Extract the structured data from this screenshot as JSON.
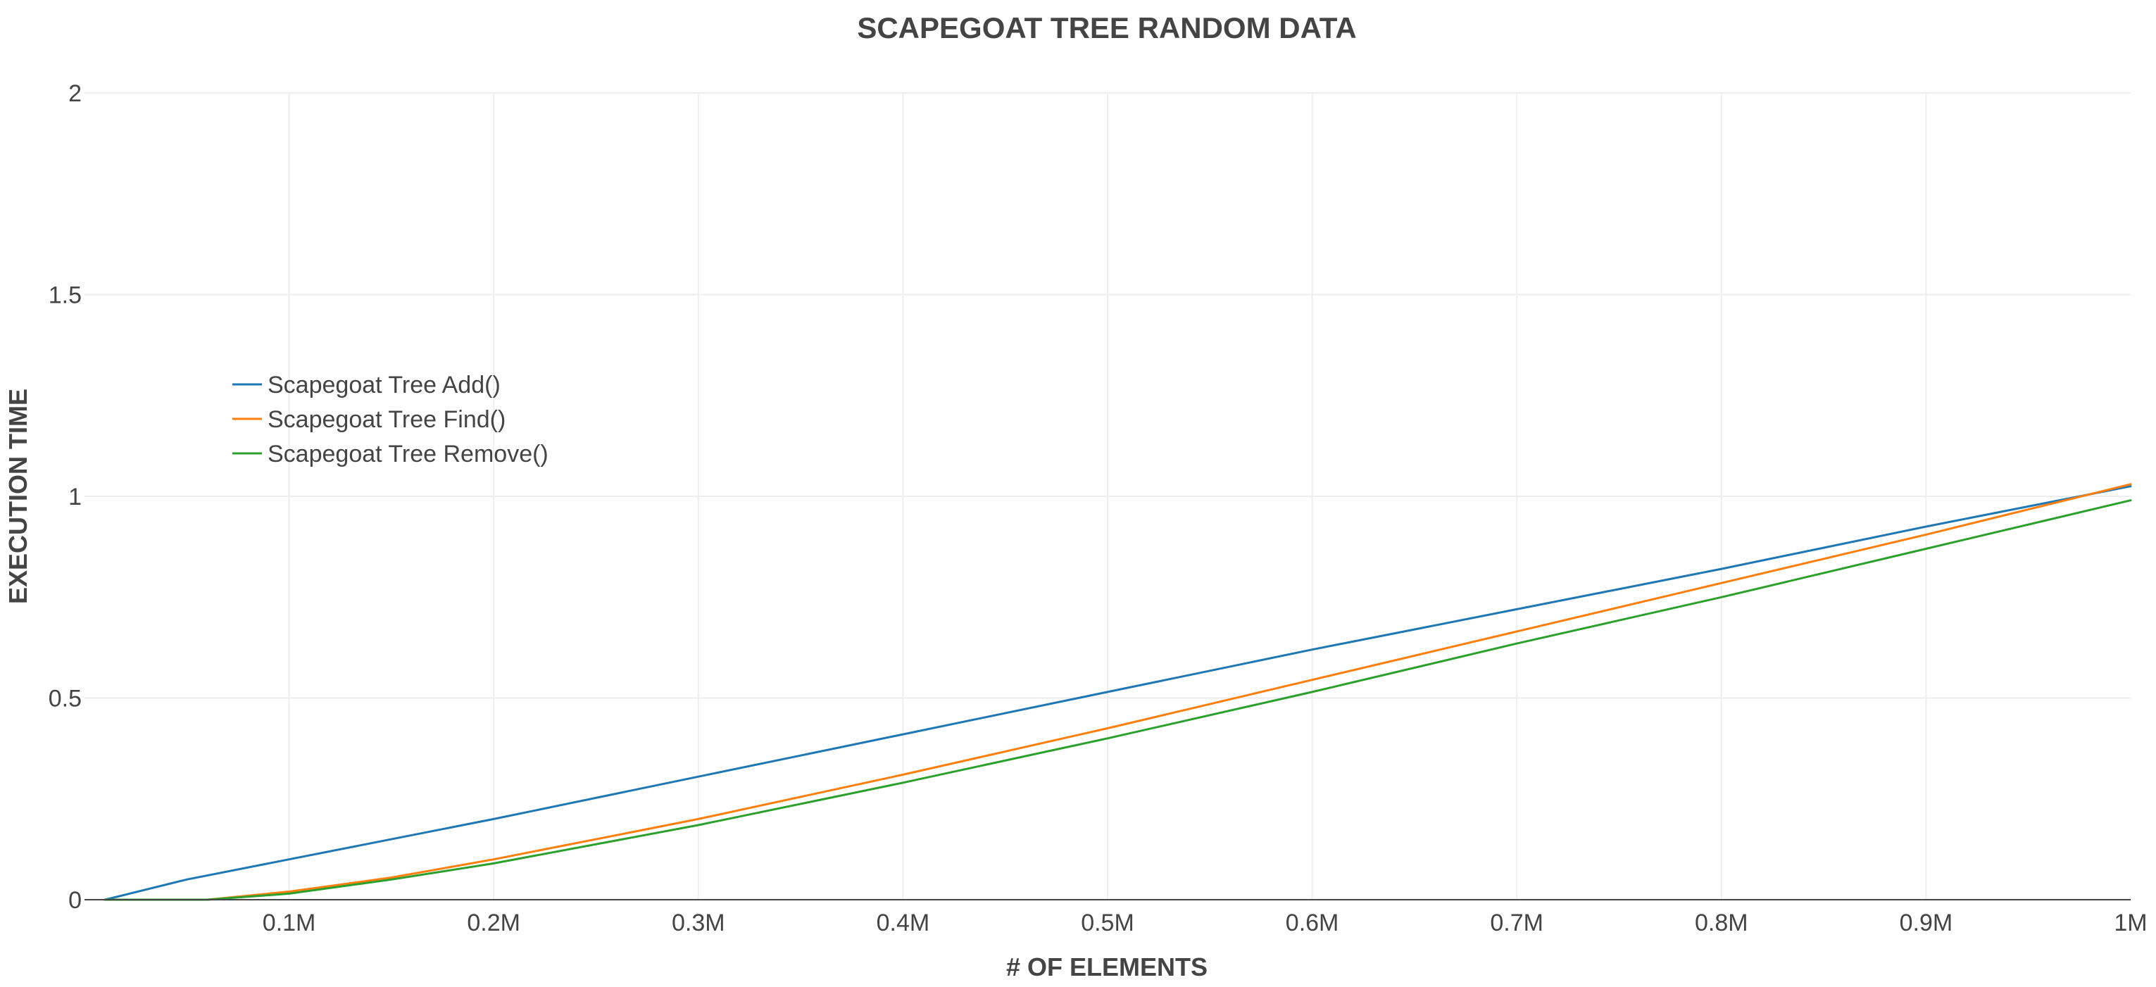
{
  "chart_data": {
    "type": "line",
    "title": "SCAPEGOAT TREE RANDOM DATA",
    "xlabel": "# OF ELEMENTS",
    "ylabel": "EXECUTION TIME",
    "xlim": [
      0,
      1000000
    ],
    "ylim": [
      0,
      2
    ],
    "x_ticks": [
      {
        "value": 100000,
        "label": "0.1M"
      },
      {
        "value": 200000,
        "label": "0.2M"
      },
      {
        "value": 300000,
        "label": "0.3M"
      },
      {
        "value": 400000,
        "label": "0.4M"
      },
      {
        "value": 500000,
        "label": "0.5M"
      },
      {
        "value": 600000,
        "label": "0.6M"
      },
      {
        "value": 700000,
        "label": "0.7M"
      },
      {
        "value": 800000,
        "label": "0.8M"
      },
      {
        "value": 900000,
        "label": "0.9M"
      },
      {
        "value": 1000000,
        "label": "1M"
      }
    ],
    "y_ticks": [
      {
        "value": 0,
        "label": "0"
      },
      {
        "value": 0.5,
        "label": "0.5"
      },
      {
        "value": 1,
        "label": "1"
      },
      {
        "value": 1.5,
        "label": "1.5"
      },
      {
        "value": 2,
        "label": "2"
      }
    ],
    "grid": true,
    "legend_position": "left",
    "series": [
      {
        "name": "Scapegoat Tree Add()",
        "color": "#1f77b4",
        "x": [
          10000,
          50000,
          100000,
          200000,
          300000,
          400000,
          500000,
          600000,
          700000,
          800000,
          900000,
          1000000
        ],
        "y": [
          0.0,
          0.05,
          0.1,
          0.2,
          0.305,
          0.41,
          0.515,
          0.62,
          0.72,
          0.82,
          0.925,
          1.025
        ]
      },
      {
        "name": "Scapegoat Tree Find()",
        "color": "#ff7f0e",
        "x": [
          10000,
          60000,
          100000,
          150000,
          200000,
          300000,
          400000,
          500000,
          600000,
          700000,
          800000,
          900000,
          1000000
        ],
        "y": [
          0.0,
          0.0,
          0.02,
          0.055,
          0.1,
          0.2,
          0.31,
          0.425,
          0.545,
          0.665,
          0.785,
          0.905,
          1.03
        ]
      },
      {
        "name": "Scapegoat Tree Remove()",
        "color": "#2ca02c",
        "x": [
          10000,
          60000,
          100000,
          150000,
          200000,
          300000,
          400000,
          500000,
          600000,
          700000,
          800000,
          900000,
          1000000
        ],
        "y": [
          0.0,
          0.0,
          0.015,
          0.05,
          0.09,
          0.185,
          0.29,
          0.4,
          0.515,
          0.635,
          0.75,
          0.87,
          0.99
        ]
      }
    ]
  }
}
